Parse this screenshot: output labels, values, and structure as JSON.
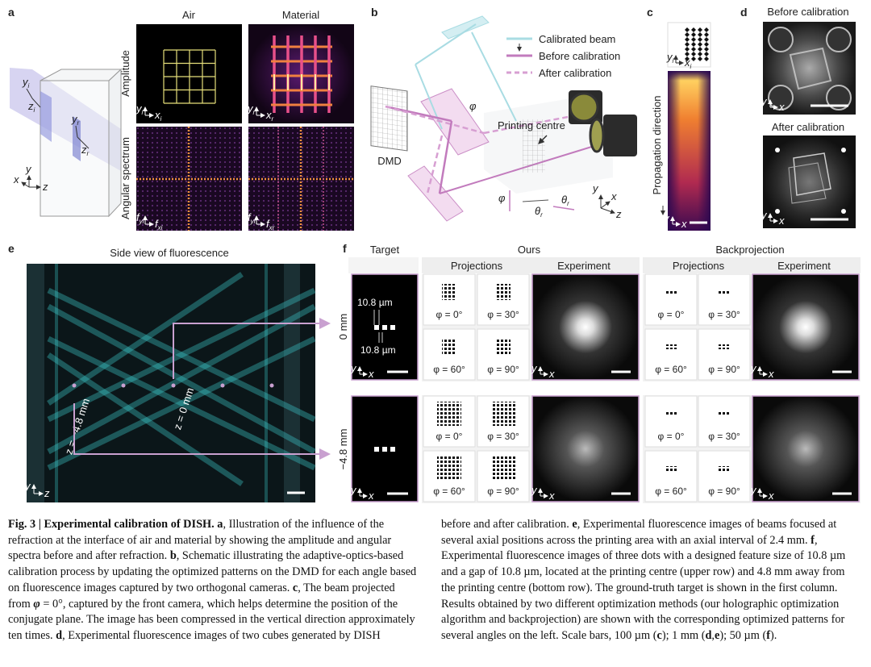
{
  "a": {
    "label": "a",
    "columns": [
      "Air",
      "Material"
    ],
    "rows": [
      "Amplitude",
      "Angular spectrum"
    ],
    "cube_axes": {
      "incident": [
        {
          "text": "y",
          "sub": "i"
        },
        {
          "text": "z",
          "sub": "i"
        }
      ],
      "refracted": [
        {
          "text": "y",
          "sub": "r"
        },
        {
          "text": "z",
          "sub": "r"
        }
      ],
      "world": [
        {
          "text": "y"
        },
        {
          "text": "x"
        },
        {
          "text": "z"
        }
      ]
    },
    "image_axes": [
      [
        {
          "text": "y",
          "sub": "i"
        },
        {
          "text": "x",
          "sub": "i"
        }
      ],
      [
        {
          "text": "y",
          "sub": "r"
        },
        {
          "text": "x",
          "sub": "r"
        }
      ],
      [
        {
          "text": "f",
          "sub": "yi"
        },
        {
          "text": "f",
          "sub": "xi"
        }
      ],
      [
        {
          "text": "f",
          "sub": "yr"
        },
        {
          "text": "f",
          "sub": "xr"
        }
      ]
    ]
  },
  "b": {
    "label": "b",
    "legend": [
      "Calibrated beam",
      "Before calibration",
      "After calibration"
    ],
    "legend_colors": [
      "#a9dce3",
      "#c27bbd",
      "#d79fd2"
    ],
    "printing_centre": "Printing centre",
    "dmd": "DMD",
    "phi": "φ",
    "angles": [
      {
        "text": "φ"
      },
      {
        "text": "θ",
        "sub": "r"
      },
      {
        "text": "θ",
        "sub": "r"
      }
    ],
    "axes": [
      {
        "text": "y"
      },
      {
        "text": "x"
      },
      {
        "text": "z"
      }
    ]
  },
  "c": {
    "label": "c",
    "propagation": "Propagation direction",
    "inset_axes": [
      {
        "text": "y",
        "sub": "i"
      },
      {
        "text": "x",
        "sub": "i"
      }
    ],
    "axes": [
      {
        "text": "y"
      },
      {
        "text": "x"
      }
    ]
  },
  "d": {
    "label": "d",
    "titles": [
      "Before calibration",
      "After calibration"
    ],
    "axes": [
      {
        "text": "y"
      },
      {
        "text": "x"
      }
    ]
  },
  "e": {
    "label": "e",
    "title": "Side view of fluorescence",
    "annotations": [
      "z = −4.8 mm",
      "z = 0 mm"
    ],
    "axes": [
      {
        "text": "y"
      },
      {
        "text": "z"
      }
    ]
  },
  "f": {
    "label": "f",
    "groups": [
      "Target",
      "Ours",
      "Backprojection"
    ],
    "subheads": [
      "Projections",
      "Experiment"
    ],
    "rows": [
      "0 mm",
      "−4.8 mm"
    ],
    "dimensions": [
      "10.8 µm",
      "10.8 µm"
    ],
    "angles": [
      "φ = 0°",
      "φ = 30°",
      "φ = 60°",
      "φ = 90°"
    ],
    "axes": [
      {
        "text": "y"
      },
      {
        "text": "x"
      }
    ]
  },
  "caption": {
    "left": [
      {
        "text": "Fig. 3 | Experimental calibration of DISH.",
        "bold": true
      },
      {
        "text": " "
      },
      {
        "text": "a",
        "bold": true
      },
      {
        "text": ", Illustration of the influence of the refraction at the interface of air and material by showing the amplitude and angular spectra before and after refraction. "
      },
      {
        "text": "b",
        "bold": true
      },
      {
        "text": ", Schematic illustrating the adaptive-optics-based calibration process by updating the optimized patterns on the DMD for each angle based on fluorescence images captured by two orthogonal cameras. "
      },
      {
        "text": "c",
        "bold": true
      },
      {
        "text": ", The beam projected from "
      },
      {
        "text": "φ",
        "bold": true,
        "italic": true
      },
      {
        "text": " = 0°, captured by the front camera, which helps determine the position of the conjugate plane. The image has been compressed in the vertical direction approximately ten times. "
      },
      {
        "text": "d",
        "bold": true
      },
      {
        "text": ", Experimental fluorescence images of two cubes generated by DISH"
      }
    ],
    "right": [
      {
        "text": "before and after calibration. "
      },
      {
        "text": "e",
        "bold": true
      },
      {
        "text": ", Experimental fluorescence images of beams focused at several axial positions across the printing area with an axial interval of 2.4 mm. "
      },
      {
        "text": "f",
        "bold": true
      },
      {
        "text": ", Experimental fluorescence images of three dots with a designed feature size of 10.8 µm and a gap of 10.8 µm, located at the printing centre (upper row) and 4.8 mm away from the printing centre (bottom row). The ground-truth target is shown in the first column. Results obtained by two different optimization methods (our holographic optimization algorithm and backprojection) are shown with the corresponding optimized patterns for several angles on the left. Scale bars, 100 µm ("
      },
      {
        "text": "c",
        "bold": true
      },
      {
        "text": "); 1 mm ("
      },
      {
        "text": "d",
        "bold": true
      },
      {
        "text": ","
      },
      {
        "text": "e",
        "bold": true
      },
      {
        "text": "); 50 µm ("
      },
      {
        "text": "f",
        "bold": true
      },
      {
        "text": ")."
      }
    ]
  }
}
